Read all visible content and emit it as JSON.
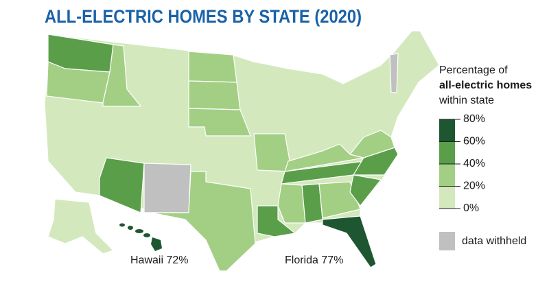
{
  "title": "ALL-ELECTRIC HOMES BY STATE (2020)",
  "legend": {
    "title": [
      "Percentage of",
      "all-electric homes",
      "within state"
    ],
    "ticks": [
      {
        "value": 80,
        "label": "80%"
      },
      {
        "value": 60,
        "label": "60%"
      },
      {
        "value": 40,
        "label": "40%"
      },
      {
        "value": 20,
        "label": "20%"
      },
      {
        "value": 0,
        "label": "0%"
      }
    ],
    "colors": [
      "#1e5631",
      "#5a9e4a",
      "#a3cf84",
      "#d3e9bd"
    ],
    "withheld": {
      "label": "data withheld",
      "color": "#c0c0c0"
    }
  },
  "annotations": [
    "Hawaii 72%",
    "Florida 77%"
  ]
}
